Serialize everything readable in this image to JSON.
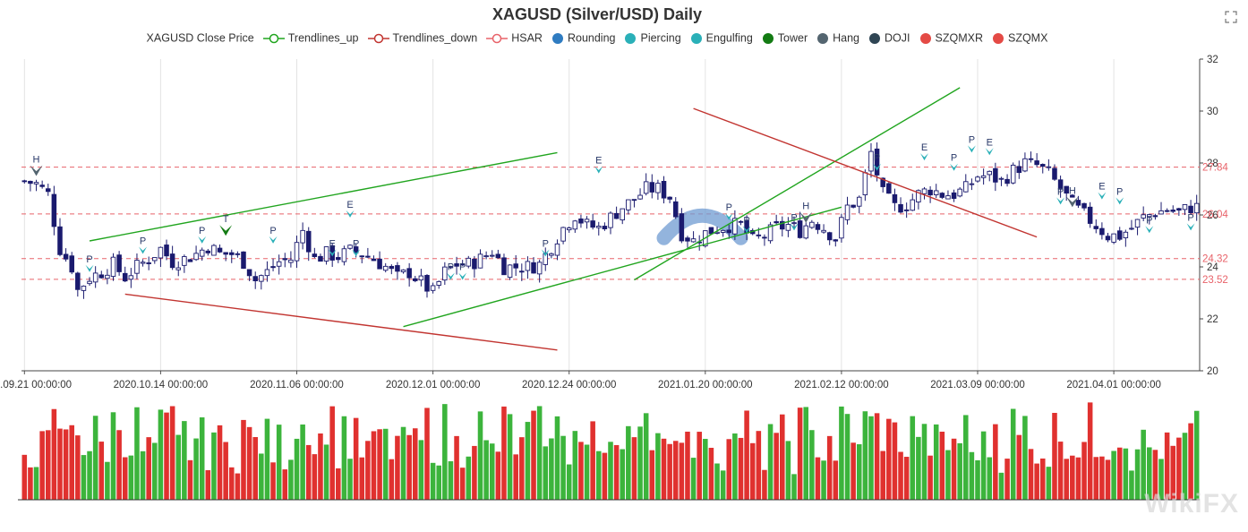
{
  "chart_data": {
    "type": "candlestick",
    "title": "XAGUSD (Silver/USD) Daily",
    "legend": [
      {
        "name": "XAGUSD Close Price",
        "color": "#333333",
        "marker": "none"
      },
      {
        "name": "Trendlines_up",
        "color": "#21a51f",
        "marker": "ring-line"
      },
      {
        "name": "Trendlines_down",
        "color": "#c23531",
        "marker": "ring-line"
      },
      {
        "name": "HSAR",
        "color": "#e8636a",
        "marker": "ring-line"
      },
      {
        "name": "Rounding",
        "color": "#2f7cc1",
        "marker": "dot"
      },
      {
        "name": "Piercing",
        "color": "#2ab0b8",
        "marker": "dot"
      },
      {
        "name": "Engulfing",
        "color": "#2ab0b8",
        "marker": "dot"
      },
      {
        "name": "Tower",
        "color": "#137b13",
        "marker": "dot"
      },
      {
        "name": "Hang",
        "color": "#546570",
        "marker": "dot"
      },
      {
        "name": "DOJI",
        "color": "#2f4554",
        "marker": "dot"
      },
      {
        "name": "SZQMXR",
        "color": "#e44a45",
        "marker": "dot"
      },
      {
        "name": "SZQMX",
        "color": "#e44a45",
        "marker": "dot"
      }
    ],
    "ylim": [
      20,
      32
    ],
    "yticks": [
      "20",
      "22",
      "24",
      "26",
      "28",
      "30",
      "32"
    ],
    "xticks": [
      "2020.09.21 00:00:00",
      "2020.10.14 00:00:00",
      "2020.11.06 00:00:00",
      "2020.12.01 00:00:00",
      "2020.12.24 00:00:00",
      "2021.01.20 00:00:00",
      "2021.02.12 00:00:00",
      "2021.03.09 00:00:00",
      "2021.04.01 00:00:00"
    ],
    "xtick_index": [
      0,
      23,
      46,
      69,
      92,
      115,
      138,
      161,
      184
    ],
    "n_bars": 199,
    "hsar_levels": [
      {
        "value": 27.84,
        "label": "27.84"
      },
      {
        "value": 26.04,
        "label": "26.04"
      },
      {
        "value": 24.32,
        "label": "24.32"
      },
      {
        "value": 23.52,
        "label": "23.52"
      }
    ],
    "close_path": [
      [
        0,
        27.3
      ],
      [
        2,
        27.2
      ],
      [
        4,
        26.8
      ],
      [
        6,
        24.7
      ],
      [
        8,
        24.0
      ],
      [
        9,
        23.1
      ],
      [
        11,
        23.6
      ],
      [
        13,
        23.8
      ],
      [
        15,
        24.1
      ],
      [
        17,
        23.6
      ],
      [
        19,
        24.0
      ],
      [
        21,
        24.3
      ],
      [
        23,
        24.7
      ],
      [
        25,
        24.2
      ],
      [
        27,
        24.3
      ],
      [
        29,
        24.5
      ],
      [
        31,
        24.8
      ],
      [
        33,
        24.5
      ],
      [
        35,
        24.5
      ],
      [
        37,
        24.2
      ],
      [
        39,
        23.5
      ],
      [
        41,
        23.8
      ],
      [
        43,
        24.2
      ],
      [
        45,
        24.3
      ],
      [
        47,
        25.4
      ],
      [
        49,
        24.3
      ],
      [
        51,
        24.5
      ],
      [
        53,
        24.4
      ],
      [
        55,
        24.6
      ],
      [
        57,
        24.5
      ],
      [
        59,
        24.3
      ],
      [
        61,
        24.0
      ],
      [
        63,
        23.6
      ],
      [
        65,
        23.8
      ],
      [
        67,
        23.4
      ],
      [
        69,
        23.0
      ],
      [
        71,
        23.8
      ],
      [
        73,
        24.1
      ],
      [
        75,
        24.1
      ],
      [
        77,
        24.3
      ],
      [
        79,
        24.6
      ],
      [
        81,
        24.0
      ],
      [
        83,
        24.0
      ],
      [
        85,
        24.0
      ],
      [
        87,
        24.1
      ],
      [
        89,
        24.8
      ],
      [
        91,
        25.5
      ],
      [
        93,
        26.0
      ],
      [
        95,
        25.6
      ],
      [
        97,
        25.5
      ],
      [
        99,
        25.9
      ],
      [
        101,
        26.3
      ],
      [
        103,
        26.6
      ],
      [
        105,
        27.0
      ],
      [
        107,
        27.0
      ],
      [
        109,
        26.7
      ],
      [
        111,
        25.3
      ],
      [
        113,
        25.0
      ],
      [
        115,
        25.3
      ],
      [
        117,
        25.5
      ],
      [
        119,
        25.6
      ],
      [
        121,
        25.6
      ],
      [
        123,
        25.0
      ],
      [
        125,
        25.2
      ],
      [
        127,
        25.5
      ],
      [
        129,
        25.6
      ],
      [
        131,
        25.4
      ],
      [
        133,
        25.8
      ],
      [
        135,
        25.5
      ],
      [
        137,
        25.1
      ],
      [
        139,
        26.3
      ],
      [
        141,
        26.6
      ],
      [
        143,
        28.4
      ],
      [
        145,
        26.8
      ],
      [
        147,
        26.3
      ],
      [
        149,
        26.4
      ],
      [
        151,
        26.8
      ],
      [
        153,
        27.0
      ],
      [
        155,
        26.8
      ],
      [
        157,
        26.8
      ],
      [
        159,
        27.0
      ],
      [
        161,
        27.5
      ],
      [
        163,
        27.5
      ],
      [
        165,
        27.3
      ],
      [
        167,
        27.7
      ],
      [
        169,
        28.0
      ],
      [
        171,
        27.9
      ],
      [
        173,
        27.6
      ],
      [
        175,
        27.0
      ],
      [
        177,
        26.4
      ],
      [
        179,
        26.0
      ],
      [
        181,
        25.6
      ],
      [
        183,
        25.2
      ],
      [
        185,
        25.2
      ],
      [
        187,
        25.5
      ],
      [
        189,
        25.9
      ],
      [
        191,
        26.1
      ],
      [
        193,
        26.2
      ],
      [
        195,
        26.1
      ],
      [
        197,
        26.3
      ],
      [
        198,
        26.3
      ]
    ],
    "trendlines_up": [
      [
        [
          11,
          25.0
        ],
        [
          90,
          28.4
        ]
      ],
      [
        [
          64,
          21.7
        ],
        [
          138,
          26.3
        ]
      ],
      [
        [
          103,
          23.5
        ],
        [
          158,
          30.9
        ]
      ]
    ],
    "trendlines_down": [
      [
        [
          17,
          22.95
        ],
        [
          90,
          20.8
        ]
      ],
      [
        [
          113,
          30.1
        ],
        [
          171,
          25.15
        ]
      ]
    ],
    "signals": [
      {
        "label": "H",
        "x": 1,
        "y": 27.5,
        "color": "#546570"
      },
      {
        "label": "P",
        "x": 7,
        "y": 23.8,
        "color": "#2ab0b8"
      },
      {
        "label": "P",
        "x": 13,
        "y": 24.5,
        "color": "#2ab0b8"
      },
      {
        "label": "P",
        "x": 19,
        "y": 24.9,
        "color": "#2ab0b8"
      },
      {
        "label": "T",
        "x": 22,
        "y": 25.2,
        "color": "#137b13"
      },
      {
        "label": "P",
        "x": 27,
        "y": 24.9,
        "color": "#2ab0b8"
      },
      {
        "label": "E",
        "x": 33,
        "y": 24.4,
        "color": "#2ab0b8"
      },
      {
        "label": "E",
        "x": 35,
        "y": 25.9,
        "color": "#2ab0b8"
      },
      {
        "label": "P",
        "x": 36,
        "y": 24.4,
        "color": "#2ab0b8"
      },
      {
        "label": "P",
        "x": 46,
        "y": 23.5,
        "color": "#2ab0b8"
      },
      {
        "label": "P",
        "x": 47,
        "y": 23.5,
        "color": "#2ab0b8"
      },
      {
        "label": "P",
        "x": 56,
        "y": 24.4,
        "color": "#2ab0b8"
      },
      {
        "label": "E",
        "x": 62,
        "y": 27.6,
        "color": "#2ab0b8"
      },
      {
        "label": "P",
        "x": 76,
        "y": 25.8,
        "color": "#2ab0b8"
      },
      {
        "label": "P",
        "x": 78,
        "y": 25.3,
        "color": "#2ab0b8"
      },
      {
        "label": "P",
        "x": 83,
        "y": 25.4,
        "color": "#2ab0b8"
      },
      {
        "label": "H",
        "x": 84,
        "y": 25.7,
        "color": "#546570"
      },
      {
        "label": "P",
        "x": 92,
        "y": 27.7,
        "color": "#2ab0b8"
      },
      {
        "label": "E",
        "x": 97,
        "y": 28.1,
        "color": "#2ab0b8"
      },
      {
        "label": "P",
        "x": 100,
        "y": 27.7,
        "color": "#2ab0b8"
      },
      {
        "label": "P",
        "x": 102,
        "y": 28.4,
        "color": "#2ab0b8"
      },
      {
        "label": "E",
        "x": 104,
        "y": 28.3,
        "color": "#2ab0b8"
      },
      {
        "label": "P",
        "x": 112,
        "y": 26.4,
        "color": "#2ab0b8"
      },
      {
        "label": "H",
        "x": 113,
        "y": 26.3,
        "color": "#546570"
      },
      {
        "label": "E",
        "x": 116,
        "y": 26.6,
        "color": "#2ab0b8"
      },
      {
        "label": "P",
        "x": 118,
        "y": 26.4,
        "color": "#2ab0b8"
      },
      {
        "label": "P",
        "x": 121,
        "y": 25.3,
        "color": "#2ab0b8"
      },
      {
        "label": "P",
        "x": 126,
        "y": 25.4,
        "color": "#2ab0b8"
      }
    ],
    "rounding": {
      "x_start": 108,
      "x_end": 121,
      "y_peak": 26.35,
      "y_end": 25.25,
      "color": "#6f9bd1"
    },
    "volume_series": "bars red/green below candles"
  },
  "watermark": "WikiFX"
}
